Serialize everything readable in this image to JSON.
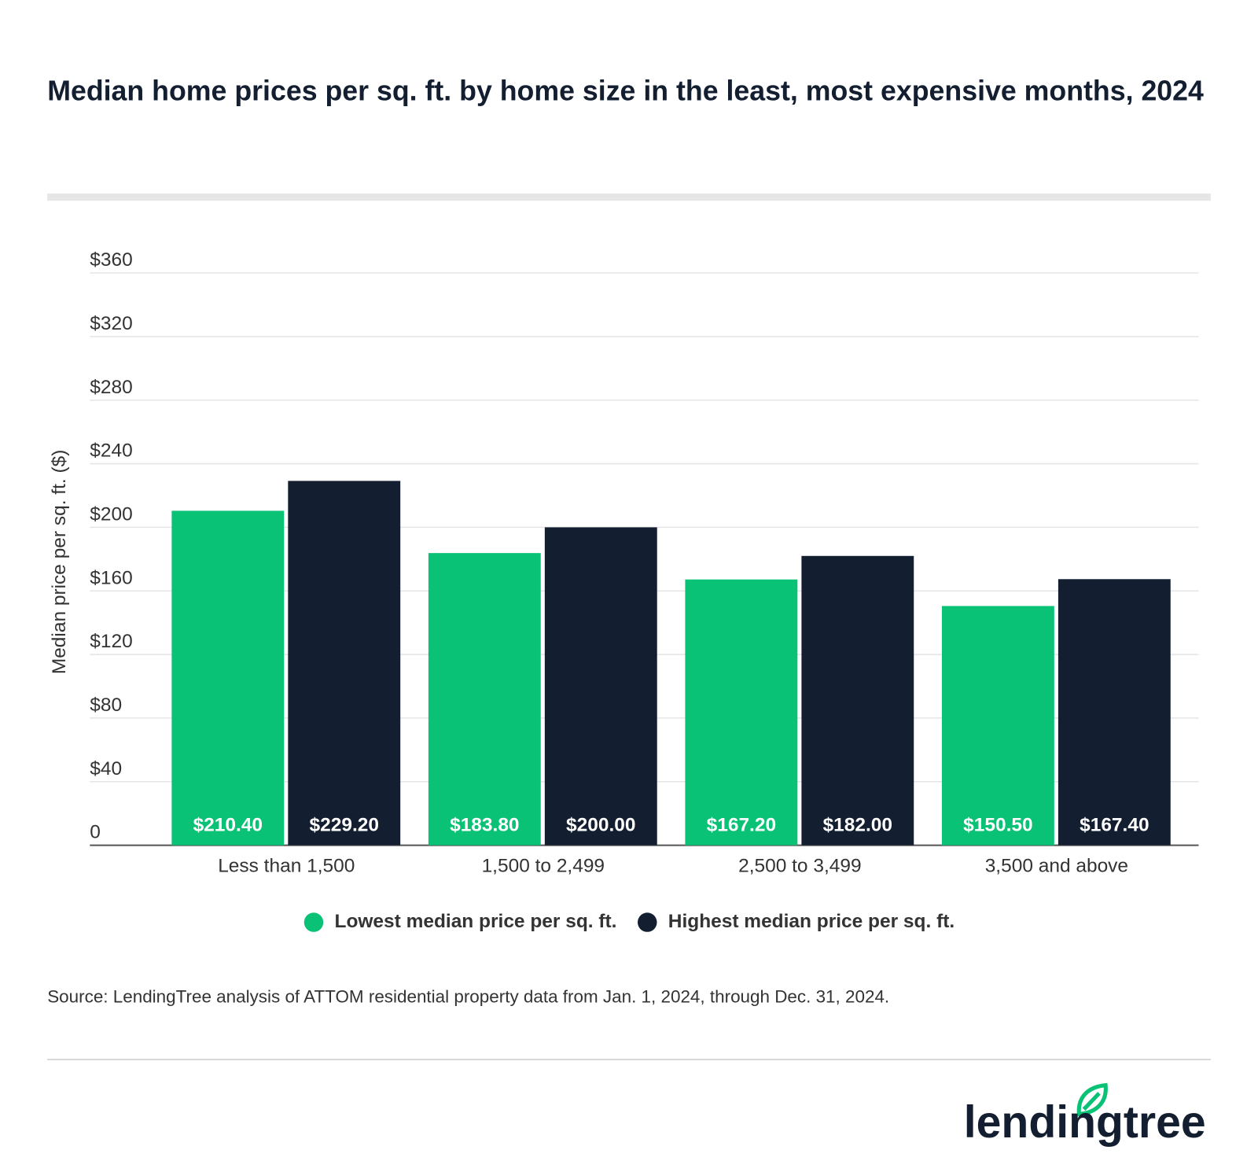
{
  "chart_data": {
    "type": "bar",
    "title": "Median home prices per sq. ft. by home size in the least, most expensive months, 2024",
    "y_label": "Median price per sq. ft. ($)",
    "categories": [
      "Less than 1,500",
      "1,500 to 2,499",
      "2,500 to 3,499",
      "3,500 and above"
    ],
    "series": [
      {
        "name": "Lowest median price per sq. ft.",
        "color": "#0ac275",
        "values": [
          210.4,
          183.8,
          167.2,
          150.5
        ],
        "value_labels": [
          "$210.40",
          "$183.80",
          "$167.20",
          "$150.50"
        ]
      },
      {
        "name": "Highest median price per sq. ft.",
        "color": "#131f30",
        "values": [
          229.2,
          200,
          182,
          167.4
        ],
        "value_labels": [
          "$229.20",
          "$200.00",
          "$182.00",
          "$167.40"
        ]
      }
    ],
    "ylim": [
      0,
      360
    ],
    "yticks": [
      0,
      {
        "value": 40,
        "label": "$40"
      },
      {
        "value": 80,
        "label": "$80"
      },
      {
        "value": 120,
        "label": "$120"
      },
      {
        "value": 160,
        "label": "$160"
      },
      {
        "value": 200,
        "label": "$200"
      },
      {
        "value": 240,
        "label": "$240"
      },
      {
        "value": 280,
        "label": "$280"
      },
      {
        "value": 320,
        "label": "$320"
      },
      {
        "value": 360,
        "label": "$360"
      }
    ],
    "grid": true,
    "legend": "bottom",
    "source": "Source: LendingTree analysis of ATTOM residential property data from Jan. 1, 2024, through Dec. 31, 2024."
  },
  "brand": "lendingtree"
}
